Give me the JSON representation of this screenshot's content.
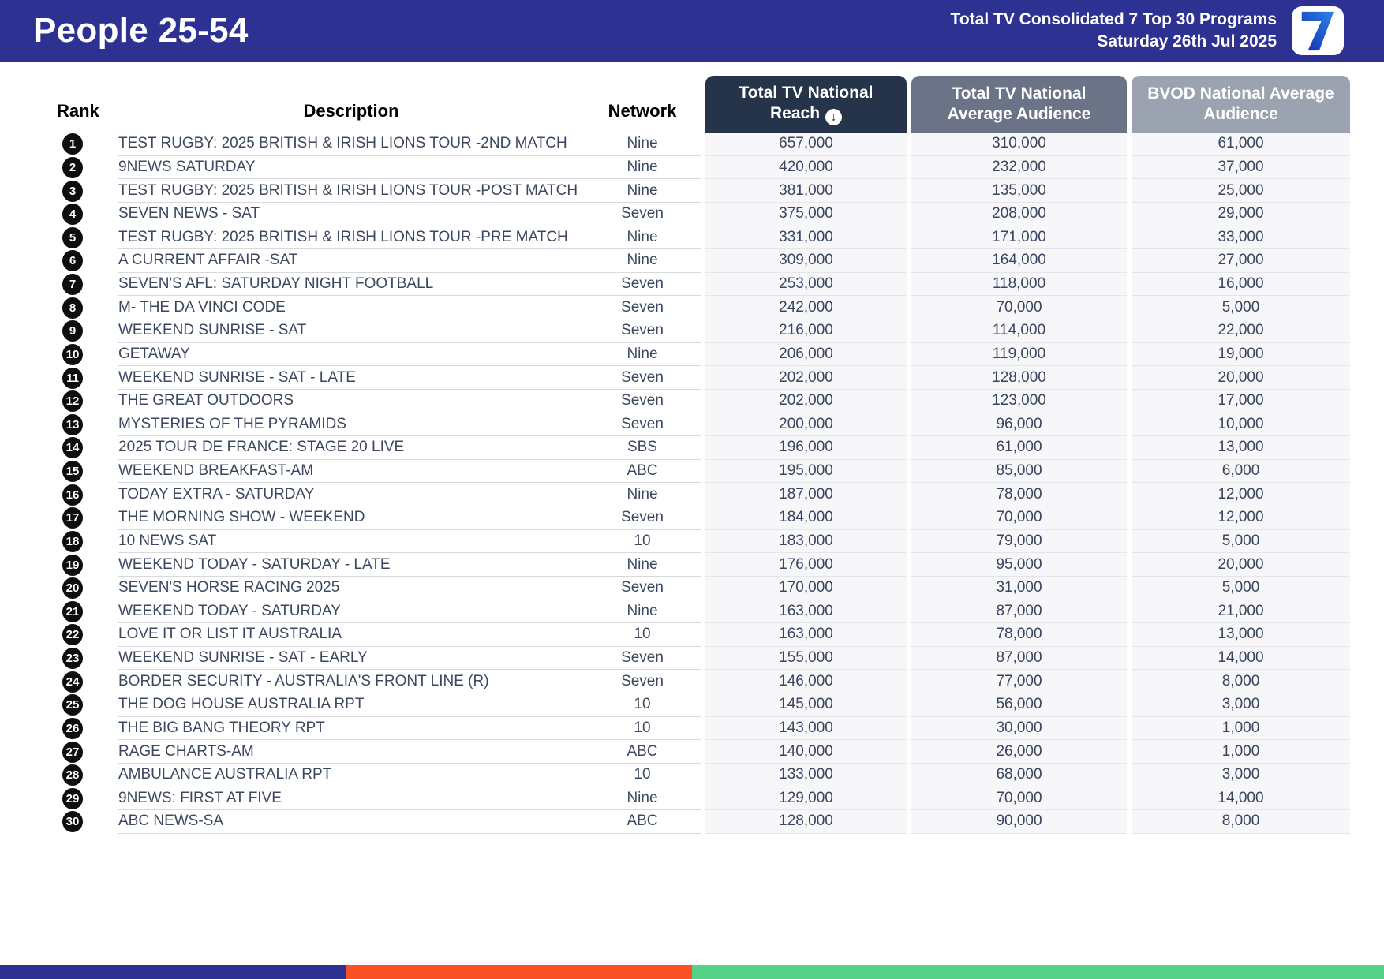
{
  "header": {
    "title": "People 25-54",
    "subtitle_line1": "Total TV Consolidated 7 Top 30 Programs",
    "subtitle_line2": "Saturday 26th Jul 2025",
    "logo_glyph": "7",
    "bar_color": "#2d3192"
  },
  "table": {
    "columns": {
      "rank": "Rank",
      "description": "Description",
      "network": "Network",
      "reach": "Total TV National Reach",
      "tv_avg": "Total TV National Average Audience",
      "bvod_avg": "BVOD National Average Audience"
    },
    "sort": {
      "column": "reach",
      "direction": "descending",
      "icon": "circled-down-arrow"
    },
    "header_colors": {
      "reach": "#253449",
      "tv_avg": "#6b7486",
      "bvod_avg": "#9ba3b0"
    },
    "rows": [
      {
        "rank": "1",
        "description": "TEST RUGBY: 2025 BRITISH & IRISH LIONS TOUR -2ND MATCH",
        "network": "Nine",
        "reach": "657,000",
        "tv_avg": "310,000",
        "bvod_avg": "61,000"
      },
      {
        "rank": "2",
        "description": "9NEWS SATURDAY",
        "network": "Nine",
        "reach": "420,000",
        "tv_avg": "232,000",
        "bvod_avg": "37,000"
      },
      {
        "rank": "3",
        "description": "TEST RUGBY: 2025 BRITISH & IRISH LIONS TOUR -POST MATCH",
        "network": "Nine",
        "reach": "381,000",
        "tv_avg": "135,000",
        "bvod_avg": "25,000"
      },
      {
        "rank": "4",
        "description": "SEVEN NEWS - SAT",
        "network": "Seven",
        "reach": "375,000",
        "tv_avg": "208,000",
        "bvod_avg": "29,000"
      },
      {
        "rank": "5",
        "description": "TEST RUGBY: 2025 BRITISH & IRISH LIONS TOUR -PRE MATCH",
        "network": "Nine",
        "reach": "331,000",
        "tv_avg": "171,000",
        "bvod_avg": "33,000"
      },
      {
        "rank": "6",
        "description": "A CURRENT AFFAIR -SAT",
        "network": "Nine",
        "reach": "309,000",
        "tv_avg": "164,000",
        "bvod_avg": "27,000"
      },
      {
        "rank": "7",
        "description": "SEVEN'S AFL: SATURDAY NIGHT FOOTBALL",
        "network": "Seven",
        "reach": "253,000",
        "tv_avg": "118,000",
        "bvod_avg": "16,000"
      },
      {
        "rank": "8",
        "description": "M- THE DA VINCI CODE",
        "network": "Seven",
        "reach": "242,000",
        "tv_avg": "70,000",
        "bvod_avg": "5,000"
      },
      {
        "rank": "9",
        "description": "WEEKEND SUNRISE - SAT",
        "network": "Seven",
        "reach": "216,000",
        "tv_avg": "114,000",
        "bvod_avg": "22,000"
      },
      {
        "rank": "10",
        "description": "GETAWAY",
        "network": "Nine",
        "reach": "206,000",
        "tv_avg": "119,000",
        "bvod_avg": "19,000"
      },
      {
        "rank": "11",
        "description": "WEEKEND SUNRISE - SAT - LATE",
        "network": "Seven",
        "reach": "202,000",
        "tv_avg": "128,000",
        "bvod_avg": "20,000"
      },
      {
        "rank": "12",
        "description": "THE GREAT OUTDOORS",
        "network": "Seven",
        "reach": "202,000",
        "tv_avg": "123,000",
        "bvod_avg": "17,000"
      },
      {
        "rank": "13",
        "description": "MYSTERIES OF THE PYRAMIDS",
        "network": "Seven",
        "reach": "200,000",
        "tv_avg": "96,000",
        "bvod_avg": "10,000"
      },
      {
        "rank": "14",
        "description": "2025 TOUR DE FRANCE: STAGE 20 LIVE",
        "network": "SBS",
        "reach": "196,000",
        "tv_avg": "61,000",
        "bvod_avg": "13,000"
      },
      {
        "rank": "15",
        "description": "WEEKEND BREAKFAST-AM",
        "network": "ABC",
        "reach": "195,000",
        "tv_avg": "85,000",
        "bvod_avg": "6,000"
      },
      {
        "rank": "16",
        "description": "TODAY EXTRA - SATURDAY",
        "network": "Nine",
        "reach": "187,000",
        "tv_avg": "78,000",
        "bvod_avg": "12,000"
      },
      {
        "rank": "17",
        "description": "THE MORNING SHOW - WEEKEND",
        "network": "Seven",
        "reach": "184,000",
        "tv_avg": "70,000",
        "bvod_avg": "12,000"
      },
      {
        "rank": "18",
        "description": "10 NEWS SAT",
        "network": "10",
        "reach": "183,000",
        "tv_avg": "79,000",
        "bvod_avg": "5,000"
      },
      {
        "rank": "19",
        "description": "WEEKEND TODAY - SATURDAY - LATE",
        "network": "Nine",
        "reach": "176,000",
        "tv_avg": "95,000",
        "bvod_avg": "20,000"
      },
      {
        "rank": "20",
        "description": "SEVEN'S HORSE RACING 2025",
        "network": "Seven",
        "reach": "170,000",
        "tv_avg": "31,000",
        "bvod_avg": "5,000"
      },
      {
        "rank": "21",
        "description": "WEEKEND TODAY - SATURDAY",
        "network": "Nine",
        "reach": "163,000",
        "tv_avg": "87,000",
        "bvod_avg": "21,000"
      },
      {
        "rank": "22",
        "description": "LOVE IT OR LIST IT AUSTRALIA",
        "network": "10",
        "reach": "163,000",
        "tv_avg": "78,000",
        "bvod_avg": "13,000"
      },
      {
        "rank": "23",
        "description": "WEEKEND SUNRISE - SAT - EARLY",
        "network": "Seven",
        "reach": "155,000",
        "tv_avg": "87,000",
        "bvod_avg": "14,000"
      },
      {
        "rank": "24",
        "description": "BORDER SECURITY - AUSTRALIA'S FRONT LINE (R)",
        "network": "Seven",
        "reach": "146,000",
        "tv_avg": "77,000",
        "bvod_avg": "8,000"
      },
      {
        "rank": "25",
        "description": "THE DOG HOUSE AUSTRALIA RPT",
        "network": "10",
        "reach": "145,000",
        "tv_avg": "56,000",
        "bvod_avg": "3,000"
      },
      {
        "rank": "26",
        "description": "THE BIG BANG THEORY RPT",
        "network": "10",
        "reach": "143,000",
        "tv_avg": "30,000",
        "bvod_avg": "1,000"
      },
      {
        "rank": "27",
        "description": "RAGE CHARTS-AM",
        "network": "ABC",
        "reach": "140,000",
        "tv_avg": "26,000",
        "bvod_avg": "1,000"
      },
      {
        "rank": "28",
        "description": "AMBULANCE AUSTRALIA RPT",
        "network": "10",
        "reach": "133,000",
        "tv_avg": "68,000",
        "bvod_avg": "3,000"
      },
      {
        "rank": "29",
        "description": "9NEWS: FIRST AT FIVE",
        "network": "Nine",
        "reach": "129,000",
        "tv_avg": "70,000",
        "bvod_avg": "14,000"
      },
      {
        "rank": "30",
        "description": "ABC NEWS-SA",
        "network": "ABC",
        "reach": "128,000",
        "tv_avg": "90,000",
        "bvod_avg": "8,000"
      }
    ]
  },
  "footer_bar": {
    "segments": [
      {
        "color": "#2d3192",
        "width_pct": 25
      },
      {
        "color": "#fa5126",
        "width_pct": 25
      },
      {
        "color": "#55d188",
        "width_pct": 50
      }
    ]
  }
}
